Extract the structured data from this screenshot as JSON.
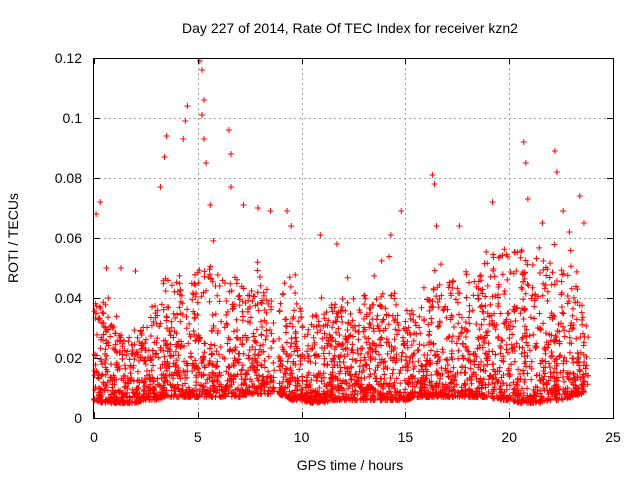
{
  "chart_data": {
    "type": "scatter",
    "title": "Day 227 of 2014, Rate Of TEC Index for receiver kzn2",
    "xlabel": "GPS time / hours",
    "ylabel": "ROTI / TECUs",
    "xlim": [
      0,
      25
    ],
    "ylim": [
      0,
      0.12
    ],
    "xticks": [
      0,
      5,
      10,
      15,
      20,
      25
    ],
    "yticks": [
      0,
      0.02,
      0.04,
      0.06,
      0.08,
      0.1,
      0.12
    ],
    "xtick_labels": [
      "0",
      "5",
      "10",
      "15",
      "20",
      "25"
    ],
    "ytick_labels": [
      "0",
      "0.02",
      "0.04",
      "0.06",
      "0.08",
      "0.1",
      "0.12"
    ],
    "grid": true,
    "marker": "plus",
    "color": "#ff0000",
    "data_gap_hours": [
      8.7,
      8.9
    ],
    "notable_points": [
      {
        "x": 0.1,
        "y": 0.068
      },
      {
        "x": 0.3,
        "y": 0.072
      },
      {
        "x": 0.6,
        "y": 0.05
      },
      {
        "x": 1.3,
        "y": 0.05
      },
      {
        "x": 2.0,
        "y": 0.049
      },
      {
        "x": 3.2,
        "y": 0.077
      },
      {
        "x": 3.4,
        "y": 0.087
      },
      {
        "x": 3.5,
        "y": 0.094
      },
      {
        "x": 4.3,
        "y": 0.093
      },
      {
        "x": 4.5,
        "y": 0.104
      },
      {
        "x": 4.4,
        "y": 0.099
      },
      {
        "x": 5.1,
        "y": 0.119
      },
      {
        "x": 5.2,
        "y": 0.116
      },
      {
        "x": 5.3,
        "y": 0.106
      },
      {
        "x": 5.2,
        "y": 0.101
      },
      {
        "x": 5.3,
        "y": 0.093
      },
      {
        "x": 5.4,
        "y": 0.085
      },
      {
        "x": 5.6,
        "y": 0.071
      },
      {
        "x": 6.5,
        "y": 0.096
      },
      {
        "x": 6.6,
        "y": 0.088
      },
      {
        "x": 6.6,
        "y": 0.077
      },
      {
        "x": 7.2,
        "y": 0.071
      },
      {
        "x": 7.9,
        "y": 0.07
      },
      {
        "x": 8.5,
        "y": 0.069
      },
      {
        "x": 9.3,
        "y": 0.069
      },
      {
        "x": 9.5,
        "y": 0.064
      },
      {
        "x": 10.9,
        "y": 0.061
      },
      {
        "x": 11.7,
        "y": 0.058
      },
      {
        "x": 14.3,
        "y": 0.061
      },
      {
        "x": 14.8,
        "y": 0.069
      },
      {
        "x": 16.3,
        "y": 0.081
      },
      {
        "x": 16.4,
        "y": 0.078
      },
      {
        "x": 16.5,
        "y": 0.064
      },
      {
        "x": 17.6,
        "y": 0.064
      },
      {
        "x": 19.2,
        "y": 0.072
      },
      {
        "x": 20.7,
        "y": 0.092
      },
      {
        "x": 20.8,
        "y": 0.085
      },
      {
        "x": 20.9,
        "y": 0.073
      },
      {
        "x": 21.6,
        "y": 0.065
      },
      {
        "x": 22.2,
        "y": 0.089
      },
      {
        "x": 22.3,
        "y": 0.082
      },
      {
        "x": 22.6,
        "y": 0.069
      },
      {
        "x": 22.9,
        "y": 0.062
      },
      {
        "x": 23.4,
        "y": 0.074
      },
      {
        "x": 23.6,
        "y": 0.065
      }
    ],
    "envelope": {
      "hours": [
        0,
        0.5,
        1,
        1.5,
        2,
        2.5,
        3,
        3.5,
        4,
        4.5,
        5,
        5.5,
        6,
        6.5,
        7,
        7.5,
        8,
        8.5,
        8.7,
        8.9,
        9.5,
        10,
        10.5,
        11,
        11.5,
        12,
        12.5,
        13,
        13.5,
        14,
        14.5,
        15,
        15.5,
        16,
        16.5,
        17,
        17.5,
        18,
        18.5,
        19,
        19.5,
        20,
        20.5,
        21,
        21.5,
        22,
        22.5,
        23,
        23.5,
        23.8
      ],
      "typical_low": [
        0.006,
        0.005,
        0.005,
        0.005,
        0.005,
        0.006,
        0.006,
        0.007,
        0.007,
        0.007,
        0.007,
        0.007,
        0.007,
        0.007,
        0.007,
        0.008,
        0.008,
        0.008,
        0.009,
        0.008,
        0.006,
        0.006,
        0.005,
        0.005,
        0.006,
        0.006,
        0.006,
        0.006,
        0.006,
        0.006,
        0.006,
        0.006,
        0.007,
        0.007,
        0.007,
        0.007,
        0.007,
        0.007,
        0.007,
        0.007,
        0.006,
        0.006,
        0.005,
        0.005,
        0.005,
        0.006,
        0.006,
        0.007,
        0.008,
        0.01
      ],
      "typical_high": [
        0.035,
        0.04,
        0.03,
        0.028,
        0.03,
        0.033,
        0.04,
        0.048,
        0.047,
        0.045,
        0.05,
        0.052,
        0.048,
        0.05,
        0.047,
        0.045,
        0.048,
        0.043,
        0.03,
        0.04,
        0.045,
        0.037,
        0.035,
        0.035,
        0.038,
        0.04,
        0.04,
        0.042,
        0.04,
        0.045,
        0.046,
        0.037,
        0.035,
        0.04,
        0.045,
        0.045,
        0.048,
        0.05,
        0.052,
        0.056,
        0.058,
        0.055,
        0.056,
        0.057,
        0.055,
        0.052,
        0.05,
        0.047,
        0.04,
        0.032
      ]
    }
  }
}
